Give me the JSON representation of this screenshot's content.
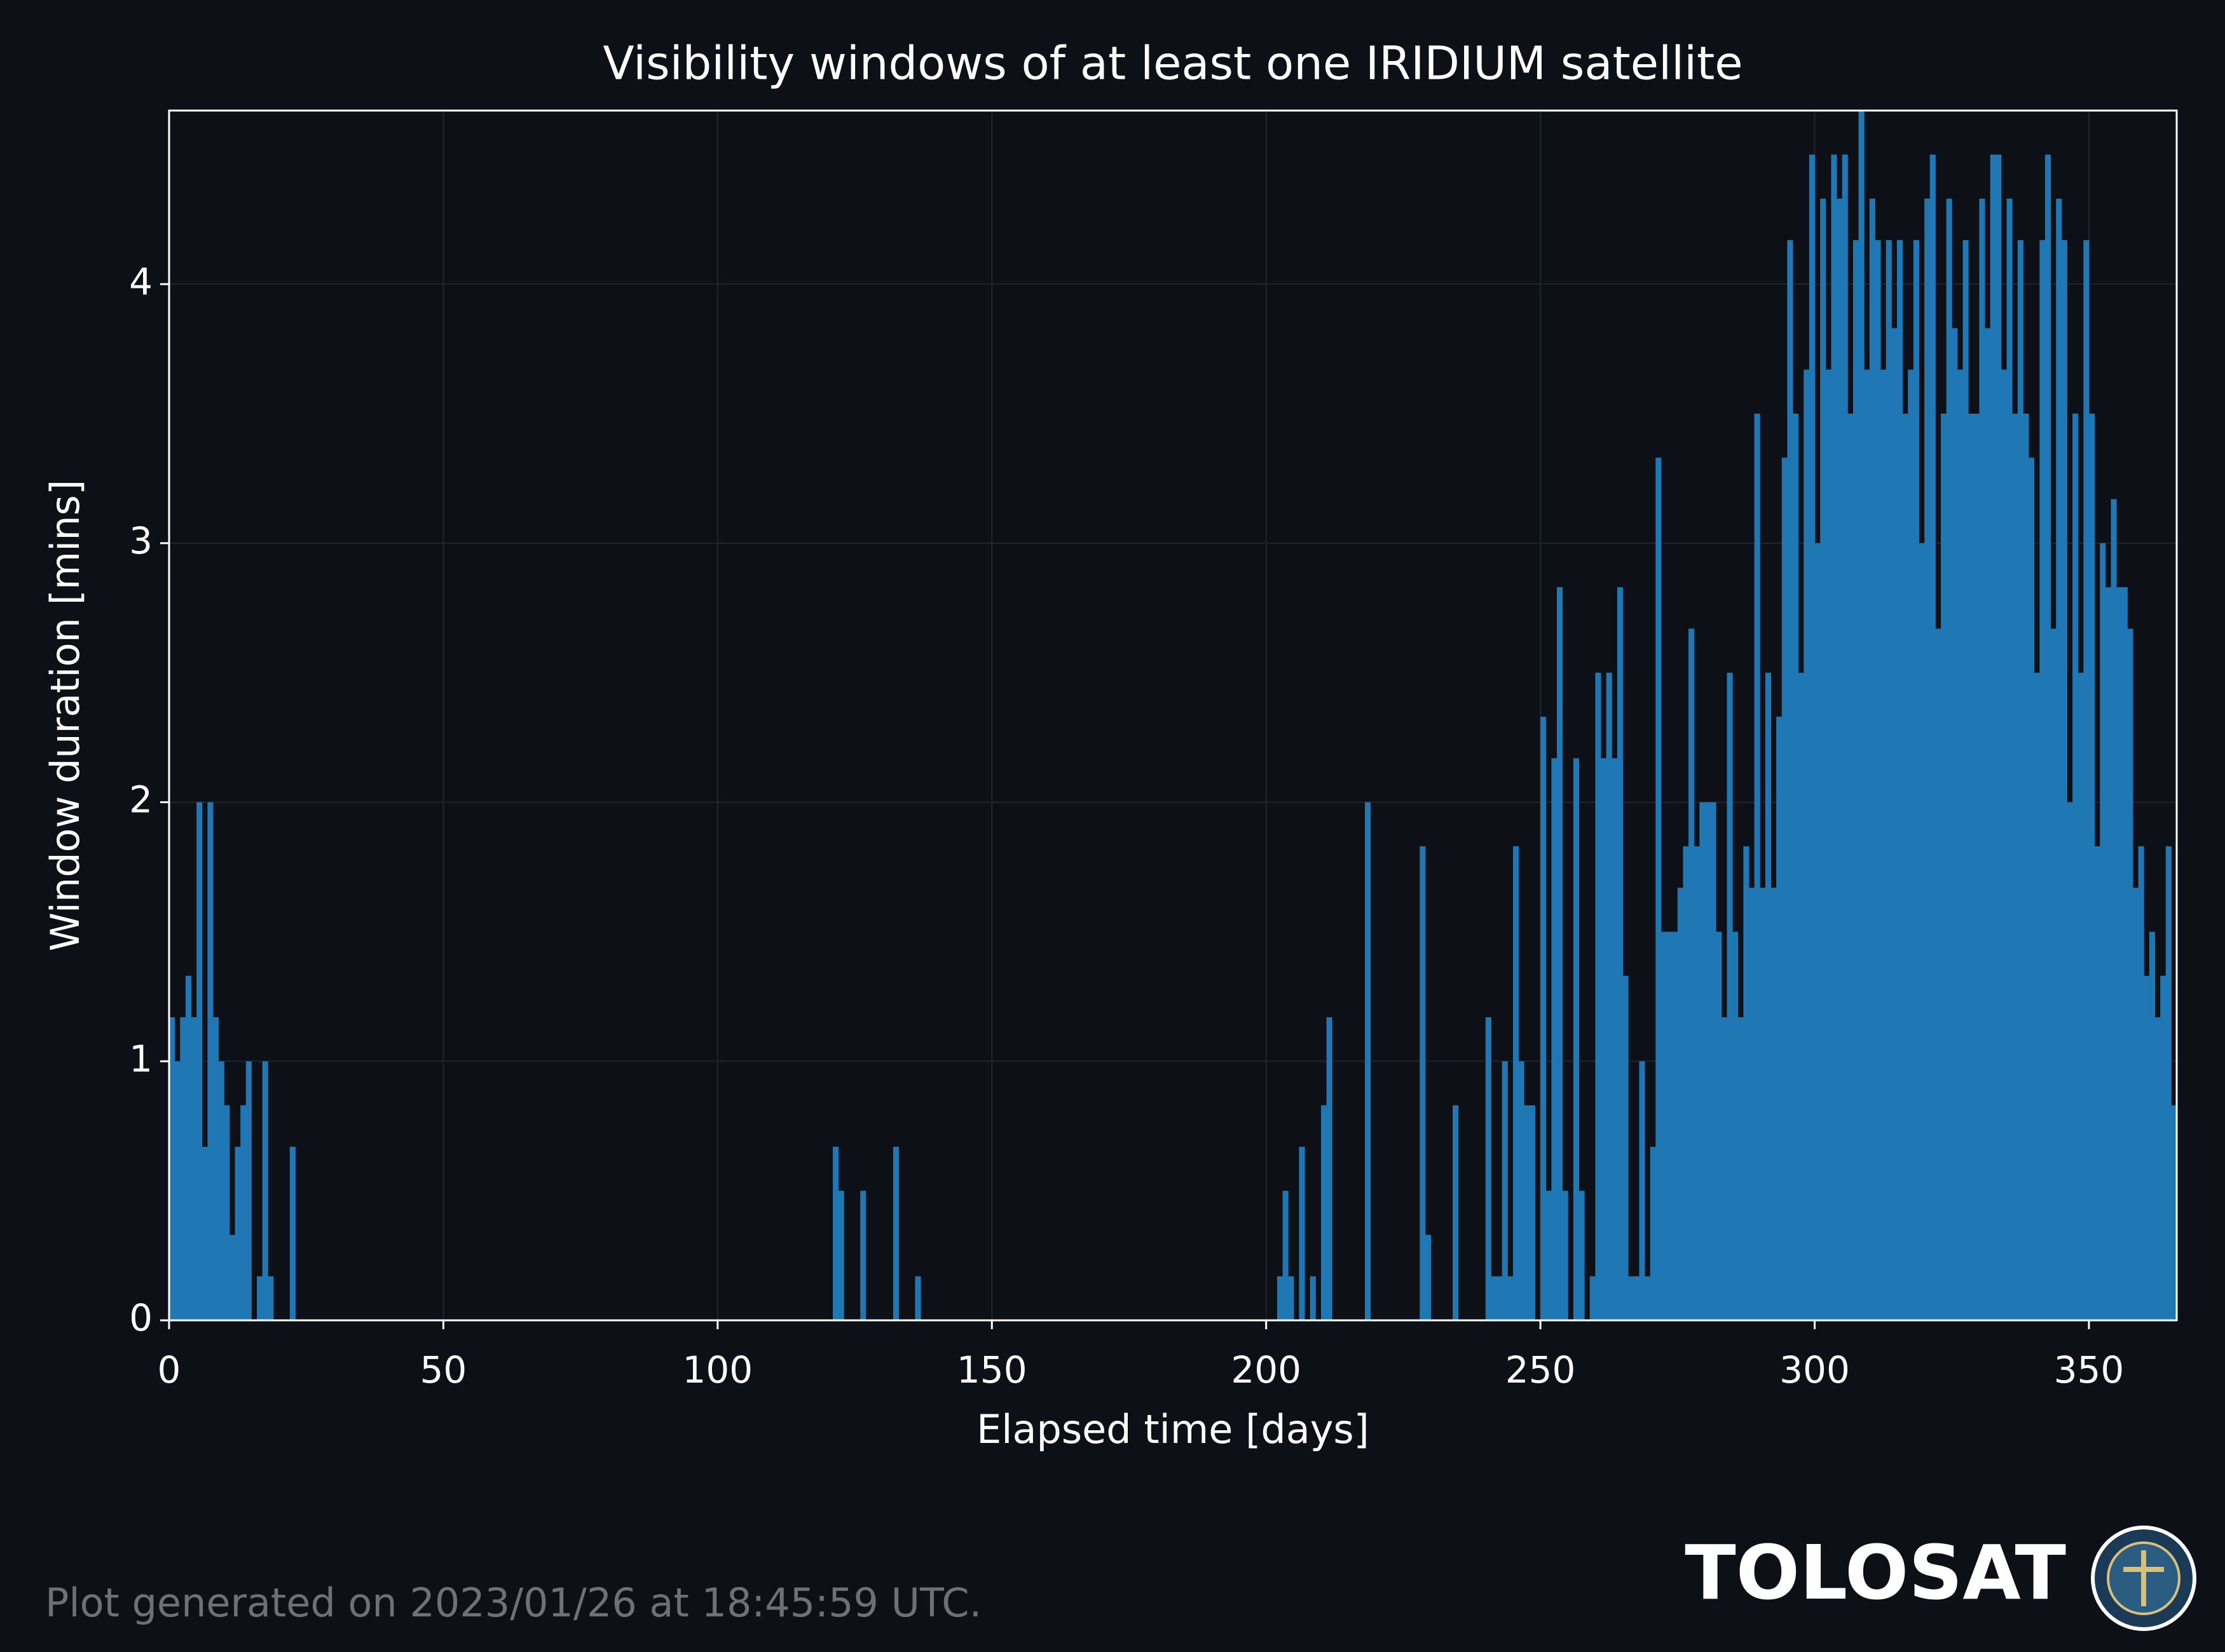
{
  "chart_data": {
    "type": "bar",
    "title": "Visibility windows of at least one IRIDIUM satellite",
    "xlabel": "Elapsed time [days]",
    "ylabel": "Window duration [mins]",
    "color": "#1f77b4",
    "grid": true,
    "xlim": [
      0,
      366
    ],
    "xticks": [
      0,
      50,
      100,
      150,
      200,
      250,
      300,
      350
    ],
    "ylim": [
      0,
      4.67
    ],
    "yticks": [
      0,
      1,
      2,
      3,
      4
    ],
    "x": [
      0,
      1,
      2,
      3,
      4,
      5,
      6,
      7,
      8,
      9,
      10,
      11,
      12,
      13,
      14,
      16,
      17,
      18,
      22,
      121,
      122,
      126,
      132,
      136,
      202,
      203,
      204,
      206,
      208,
      210,
      211,
      218,
      228,
      229,
      234,
      240,
      241,
      242,
      243,
      244,
      245,
      246,
      247,
      248,
      250,
      251,
      252,
      253,
      254,
      256,
      257,
      259,
      260,
      261,
      262,
      263,
      264,
      265,
      266,
      267,
      268,
      269,
      270,
      271,
      272,
      273,
      274,
      275,
      276,
      277,
      278,
      279,
      280,
      281,
      282,
      283,
      284,
      285,
      286,
      287,
      288,
      289,
      290,
      291,
      292,
      293,
      294,
      295,
      296,
      297,
      298,
      299,
      300,
      301,
      302,
      303,
      304,
      305,
      306,
      307,
      308,
      309,
      310,
      311,
      312,
      313,
      314,
      315,
      316,
      317,
      318,
      319,
      320,
      321,
      322,
      323,
      324,
      325,
      326,
      327,
      328,
      329,
      330,
      331,
      332,
      333,
      334,
      335,
      336,
      337,
      338,
      339,
      340,
      341,
      342,
      343,
      344,
      345,
      346,
      347,
      348,
      349,
      350,
      351,
      352,
      353,
      354,
      355,
      356,
      357,
      358,
      359,
      360,
      361,
      362,
      363,
      364,
      365
    ],
    "values": [
      1.17,
      1.0,
      1.17,
      1.33,
      1.17,
      2.0,
      0.67,
      2.0,
      1.17,
      1.0,
      0.83,
      0.33,
      0.67,
      0.83,
      1.0,
      0.17,
      1.0,
      0.17,
      0.67,
      0.67,
      0.5,
      0.5,
      0.67,
      0.17,
      0.17,
      0.5,
      0.17,
      0.67,
      0.17,
      0.83,
      1.17,
      2.0,
      1.83,
      0.33,
      0.83,
      1.17,
      0.17,
      0.17,
      1.0,
      0.17,
      1.83,
      1.0,
      0.83,
      0.83,
      2.33,
      0.5,
      2.17,
      2.83,
      0.5,
      2.17,
      0.5,
      0.17,
      2.5,
      2.17,
      2.5,
      2.17,
      2.83,
      1.33,
      0.17,
      0.17,
      1.0,
      0.17,
      0.67,
      3.33,
      1.5,
      1.5,
      1.5,
      1.67,
      1.83,
      2.67,
      1.83,
      2.0,
      2.0,
      2.0,
      1.5,
      1.17,
      2.5,
      1.5,
      1.17,
      1.83,
      1.67,
      3.5,
      1.67,
      2.5,
      1.67,
      2.33,
      3.33,
      4.17,
      3.5,
      2.5,
      3.67,
      4.5,
      3.0,
      4.33,
      3.67,
      4.5,
      4.33,
      4.5,
      3.5,
      4.17,
      4.67,
      3.67,
      4.33,
      4.17,
      3.67,
      4.17,
      3.83,
      4.17,
      3.5,
      3.67,
      4.17,
      3.0,
      4.33,
      4.5,
      2.67,
      3.5,
      4.33,
      3.83,
      3.67,
      4.17,
      3.5,
      3.5,
      4.33,
      3.83,
      4.5,
      4.5,
      3.67,
      4.33,
      3.5,
      4.17,
      3.5,
      3.33,
      2.5,
      4.17,
      4.5,
      2.67,
      4.33,
      4.17,
      2.0,
      3.5,
      2.5,
      4.17,
      3.5,
      1.83,
      3.0,
      2.83,
      3.17,
      2.83,
      2.83,
      2.67,
      1.67,
      1.83,
      1.33,
      1.5,
      1.17,
      1.33,
      1.83,
      0.83
    ]
  },
  "footer": "Plot generated on 2023/01/26 at 18:45:59 UTC.",
  "brand": "TOLOSAT"
}
